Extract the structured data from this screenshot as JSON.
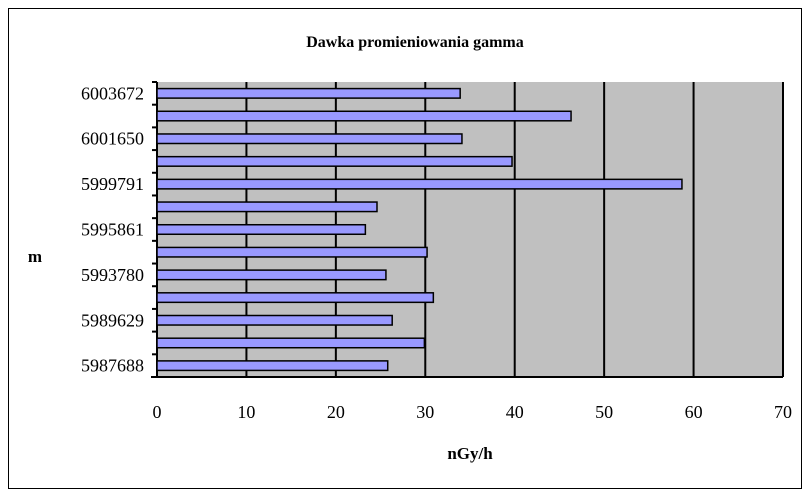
{
  "chart_data": {
    "type": "bar",
    "orientation": "horizontal",
    "title": "Dawka promieniowania gamma",
    "xlabel": "nGy/h",
    "ylabel": "m",
    "xlim": [
      0,
      70
    ],
    "xticks": [
      0,
      10,
      20,
      30,
      40,
      50,
      60,
      70
    ],
    "ytick_labels": [
      "5987688",
      "5989629",
      "5993780",
      "5995861",
      "5999791",
      "6001650",
      "6003672"
    ],
    "categories": [
      "5987688",
      "",
      "5989629",
      "",
      "5993780",
      "",
      "5995861",
      "",
      "5999791",
      "",
      "6001650",
      "",
      "6003672"
    ],
    "values": [
      25.8,
      29.9,
      26.3,
      30.9,
      25.6,
      30.2,
      23.3,
      24.6,
      58.7,
      39.7,
      34.1,
      46.3,
      33.9
    ],
    "grid": "vertical",
    "plot_background": "#c0c0c0",
    "bar_color": "#9999ff",
    "bar_edge_color": "#000000"
  }
}
